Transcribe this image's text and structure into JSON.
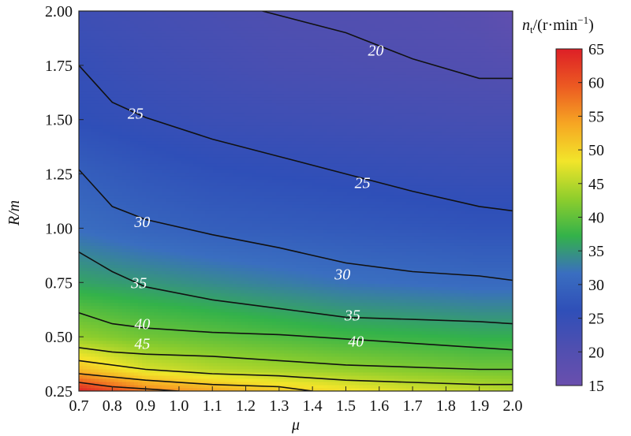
{
  "chart_data": {
    "type": "heatmap",
    "xlabel": "μ",
    "ylabel": "R/m",
    "colorbar_label_base": "n",
    "colorbar_label_sub": "t",
    "colorbar_label_rest": "/(r·min",
    "colorbar_label_sup": "−1",
    "colorbar_label_close": ")",
    "xlim": [
      0.7,
      2.0
    ],
    "ylim": [
      0.25,
      2.0
    ],
    "color_range": [
      15,
      65
    ],
    "x_ticks": [
      "0.7",
      "0.8",
      "0.9",
      "1.0",
      "1.1",
      "1.2",
      "1.3",
      "1.4",
      "1.5",
      "1.6",
      "1.7",
      "1.8",
      "1.9",
      "2.0"
    ],
    "y_ticks": [
      "0.25",
      "0.50",
      "0.75",
      "1.00",
      "1.25",
      "1.50",
      "1.75",
      "2.00"
    ],
    "colorbar_ticks": [
      "15",
      "20",
      "25",
      "30",
      "35",
      "40",
      "45",
      "50",
      "55",
      "60",
      "65"
    ],
    "x": [
      0.7,
      0.9,
      1.1,
      1.3,
      1.5,
      1.7,
      1.9,
      2.0
    ],
    "y": [
      0.25,
      0.35,
      0.5,
      0.75,
      1.0,
      1.25,
      1.5,
      1.75,
      2.0
    ],
    "z": [
      [
        65,
        57,
        54,
        51,
        49,
        47,
        46,
        45
      ],
      [
        52,
        47,
        45,
        44,
        43,
        42,
        41,
        41
      ],
      [
        43,
        41,
        40,
        39,
        38,
        37.5,
        37,
        37
      ],
      [
        36,
        35,
        34,
        33,
        32,
        31.5,
        31,
        31
      ],
      [
        31.5,
        30,
        29,
        28.5,
        28,
        27.5,
        27,
        27
      ],
      [
        29,
        27.5,
        26.5,
        26,
        25.5,
        25,
        24.5,
        24.5
      ],
      [
        26,
        25,
        24,
        23.5,
        23,
        22.5,
        22,
        22
      ],
      [
        25,
        23.5,
        22.5,
        21.5,
        21,
        20.5,
        20,
        19.5
      ],
      [
        23.5,
        22.5,
        21.5,
        20.5,
        20,
        19.5,
        18.5,
        17
      ]
    ],
    "contours": [
      {
        "level": 20,
        "label": "20",
        "points": [
          [
            1.25,
            2.0
          ],
          [
            1.5,
            1.9
          ],
          [
            1.7,
            1.78
          ],
          [
            1.9,
            1.69
          ],
          [
            2.0,
            1.69
          ]
        ],
        "label_at": [
          1.59,
          1.82
        ]
      },
      {
        "level": 25,
        "label": "25",
        "points": [
          [
            0.7,
            1.75
          ],
          [
            0.8,
            1.58
          ],
          [
            0.9,
            1.51
          ],
          [
            1.1,
            1.41
          ],
          [
            1.3,
            1.33
          ],
          [
            1.5,
            1.25
          ],
          [
            1.7,
            1.17
          ],
          [
            1.9,
            1.1
          ],
          [
            2.0,
            1.08
          ]
        ],
        "label_at": [
          1.55,
          1.21
        ]
      },
      {
        "level": 25,
        "label": "25",
        "points": [],
        "label_at": [
          0.87,
          1.53
        ]
      },
      {
        "level": 30,
        "label": "30",
        "points": [
          [
            0.7,
            1.27
          ],
          [
            0.8,
            1.1
          ],
          [
            0.9,
            1.04
          ],
          [
            1.1,
            0.97
          ],
          [
            1.3,
            0.91
          ],
          [
            1.5,
            0.84
          ],
          [
            1.7,
            0.8
          ],
          [
            1.9,
            0.78
          ],
          [
            2.0,
            0.76
          ]
        ],
        "label_at": [
          1.49,
          0.79
        ]
      },
      {
        "level": 30,
        "label": "30",
        "points": [],
        "label_at": [
          0.89,
          1.03
        ]
      },
      {
        "level": 35,
        "label": "35",
        "points": [
          [
            0.7,
            0.89
          ],
          [
            0.8,
            0.8
          ],
          [
            0.9,
            0.73
          ],
          [
            1.1,
            0.67
          ],
          [
            1.3,
            0.63
          ],
          [
            1.5,
            0.59
          ],
          [
            1.7,
            0.58
          ],
          [
            1.9,
            0.57
          ],
          [
            2.0,
            0.56
          ]
        ],
        "label_at": [
          1.52,
          0.6
        ]
      },
      {
        "level": 35,
        "label": "35",
        "points": [],
        "label_at": [
          0.88,
          0.75
        ]
      },
      {
        "level": 40,
        "label": "40",
        "points": [
          [
            0.7,
            0.61
          ],
          [
            0.8,
            0.56
          ],
          [
            0.9,
            0.54
          ],
          [
            1.1,
            0.52
          ],
          [
            1.3,
            0.51
          ],
          [
            1.5,
            0.49
          ],
          [
            1.7,
            0.47
          ],
          [
            1.9,
            0.45
          ],
          [
            2.0,
            0.44
          ]
        ],
        "label_at": [
          1.53,
          0.48
        ]
      },
      {
        "level": 40,
        "label": "40",
        "points": [],
        "label_at": [
          0.89,
          0.56
        ]
      },
      {
        "level": 45,
        "label": "45",
        "points": [
          [
            0.7,
            0.45
          ],
          [
            0.8,
            0.43
          ],
          [
            0.9,
            0.42
          ],
          [
            1.1,
            0.41
          ],
          [
            1.3,
            0.39
          ],
          [
            1.5,
            0.37
          ],
          [
            1.7,
            0.36
          ],
          [
            1.9,
            0.35
          ],
          [
            2.0,
            0.35
          ]
        ],
        "label_at": [
          0.89,
          0.47
        ]
      },
      {
        "level": 50,
        "label": "",
        "points": [
          [
            0.7,
            0.39
          ],
          [
            0.9,
            0.35
          ],
          [
            1.1,
            0.33
          ],
          [
            1.3,
            0.32
          ],
          [
            1.5,
            0.3
          ],
          [
            1.7,
            0.29
          ],
          [
            1.9,
            0.28
          ],
          [
            2.0,
            0.28
          ]
        ],
        "label_at": null
      },
      {
        "level": 55,
        "label": "",
        "points": [
          [
            0.7,
            0.33
          ],
          [
            0.9,
            0.3
          ],
          [
            1.1,
            0.28
          ],
          [
            1.3,
            0.27
          ],
          [
            1.4,
            0.25
          ]
        ],
        "label_at": null
      },
      {
        "level": 60,
        "label": "",
        "points": [
          [
            0.7,
            0.29
          ],
          [
            0.8,
            0.27
          ],
          [
            0.9,
            0.26
          ],
          [
            1.0,
            0.25
          ]
        ],
        "label_at": null
      }
    ],
    "colormap": [
      "#6a4fae",
      "#4f4fb0",
      "#2f4fb8",
      "#3a6ec0",
      "#33b24a",
      "#8fce2c",
      "#f2e52a",
      "#f6a623",
      "#ec5a22",
      "#dd1f26"
    ]
  }
}
